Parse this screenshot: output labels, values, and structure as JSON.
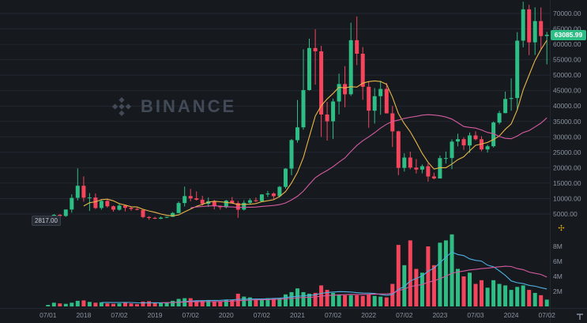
{
  "watermark": {
    "text": "BINANCE",
    "color": "#4a5362"
  },
  "colors": {
    "bg": "#161a1e",
    "up": "#2ebd85",
    "down": "#f4455d",
    "grid": "#222731",
    "axis_text": "#8b93a0",
    "badge_bg": "#2ebd85",
    "badge_text": "#ffffff",
    "accent_yellow": "#f0b90b"
  },
  "last_price": {
    "label": "63085.99",
    "value": 63085.99
  },
  "first_label": {
    "label": "2817.00",
    "value": 2817.0
  },
  "price_axis": {
    "max": 70000,
    "min": 5000,
    "labels": [
      "70000.00",
      "65000.00",
      "60000.00",
      "55000.00",
      "50000.00",
      "45000.00",
      "40000.00",
      "35000.00",
      "30000.00",
      "25000.00",
      "20000.00",
      "15000.00",
      "10000.00",
      "5000.00"
    ]
  },
  "volume_axis": {
    "unit": "M",
    "labels": [
      {
        "label": "8M",
        "value": 8
      },
      {
        "label": "6M",
        "value": 6
      },
      {
        "label": "4M",
        "value": 4
      },
      {
        "label": "2M",
        "value": 2
      }
    ]
  },
  "time_axis": {
    "labels": [
      {
        "index": 0,
        "text": "07/01"
      },
      {
        "index": 6,
        "text": "2018"
      },
      {
        "index": 12,
        "text": "07/02"
      },
      {
        "index": 18,
        "text": "2019"
      },
      {
        "index": 24,
        "text": "07/02"
      },
      {
        "index": 30,
        "text": "2020"
      },
      {
        "index": 36,
        "text": "07/02"
      },
      {
        "index": 42,
        "text": "2021"
      },
      {
        "index": 48,
        "text": "07/02"
      },
      {
        "index": 54,
        "text": "2022"
      },
      {
        "index": 60,
        "text": "07/02"
      },
      {
        "index": 66,
        "text": "2023"
      },
      {
        "index": 72,
        "text": "07/03"
      },
      {
        "index": 78,
        "text": "2024"
      },
      {
        "index": 84,
        "text": "07/02"
      }
    ]
  },
  "chart_data": {
    "type": "candlestick",
    "subtype": "price-with-volume",
    "interval": "monthly",
    "start_month": "2017-07",
    "ylim_price": [
      5000,
      70000
    ],
    "ylim_volume_millions": [
      0,
      10
    ],
    "last_price": 63085.99,
    "price_ma": [
      {
        "period": 7,
        "color": "#e7b54a"
      },
      {
        "period": 25,
        "color": "#d45a9f"
      }
    ],
    "volume_ma": [
      {
        "period": 10,
        "color": "#4cb0e0"
      },
      {
        "period": 20,
        "color": "#d45a9f"
      }
    ],
    "candles_format": [
      "open",
      "high",
      "low",
      "close",
      "volume_millions"
    ],
    "candles": [
      [
        2480,
        2960,
        1830,
        2875,
        0.2
      ],
      [
        2875,
        4980,
        2830,
        4735,
        0.5
      ],
      [
        4735,
        4975,
        2970,
        4360,
        0.4
      ],
      [
        4360,
        6500,
        4110,
        6468,
        0.35
      ],
      [
        6468,
        11400,
        5440,
        10233,
        0.5
      ],
      [
        10233,
        19800,
        9380,
        14156,
        0.75
      ],
      [
        14156,
        17200,
        9000,
        10285,
        0.8
      ],
      [
        10285,
        11790,
        6000,
        10340,
        0.6
      ],
      [
        10340,
        11680,
        6600,
        6940,
        0.5
      ],
      [
        6940,
        9760,
        6420,
        9245,
        0.55
      ],
      [
        9245,
        9990,
        7040,
        7500,
        0.4
      ],
      [
        7500,
        7780,
        5780,
        6400,
        0.35
      ],
      [
        6400,
        8500,
        6070,
        7750,
        0.4
      ],
      [
        7750,
        7760,
        5880,
        7020,
        0.55
      ],
      [
        7020,
        7410,
        6100,
        6630,
        0.4
      ],
      [
        6630,
        6970,
        6200,
        6340,
        0.3
      ],
      [
        6340,
        6540,
        3650,
        4040,
        0.65
      ],
      [
        4040,
        4300,
        3130,
        3740,
        0.7
      ],
      [
        3740,
        4080,
        3350,
        3460,
        0.55
      ],
      [
        3460,
        4190,
        3330,
        3820,
        0.5
      ],
      [
        3820,
        4140,
        3670,
        4100,
        0.45
      ],
      [
        4100,
        5630,
        4050,
        5320,
        0.75
      ],
      [
        5320,
        9070,
        5270,
        8560,
        1.0
      ],
      [
        8560,
        13880,
        7430,
        10820,
        1.1
      ],
      [
        10820,
        13130,
        9090,
        10080,
        1.1
      ],
      [
        10080,
        12320,
        9350,
        9630,
        0.8
      ],
      [
        9630,
        10900,
        7700,
        8310,
        0.75
      ],
      [
        8310,
        10350,
        7300,
        9150,
        0.85
      ],
      [
        9150,
        9520,
        6520,
        7550,
        0.7
      ],
      [
        7550,
        7750,
        6430,
        7200,
        0.65
      ],
      [
        7200,
        9570,
        6850,
        9350,
        0.9
      ],
      [
        9350,
        10500,
        8400,
        8540,
        0.9
      ],
      [
        8540,
        9190,
        3780,
        6420,
        1.7
      ],
      [
        6420,
        9460,
        6150,
        8630,
        1.3
      ],
      [
        8630,
        10070,
        8100,
        9450,
        1.2
      ],
      [
        9450,
        10380,
        8830,
        9140,
        0.9
      ],
      [
        9140,
        11440,
        8900,
        11350,
        0.9
      ],
      [
        11350,
        12480,
        10550,
        11650,
        1.1
      ],
      [
        11650,
        12050,
        9820,
        10780,
        1.1
      ],
      [
        10780,
        14100,
        10380,
        13800,
        1.1
      ],
      [
        13800,
        19860,
        13200,
        19700,
        1.6
      ],
      [
        19700,
        29300,
        17570,
        28950,
        1.9
      ],
      [
        28950,
        41950,
        28130,
        33110,
        2.4
      ],
      [
        33110,
        58350,
        32300,
        45160,
        1.9
      ],
      [
        45160,
        61800,
        45000,
        58780,
        1.7
      ],
      [
        58780,
        64850,
        46930,
        57720,
        1.8
      ],
      [
        57720,
        59500,
        30000,
        37250,
        2.8
      ],
      [
        37250,
        41330,
        28800,
        35040,
        2.2
      ],
      [
        35040,
        42400,
        29280,
        41460,
        1.8
      ],
      [
        41460,
        50500,
        37300,
        47110,
        1.6
      ],
      [
        47110,
        52920,
        39600,
        43790,
        1.5
      ],
      [
        43790,
        67000,
        43280,
        61320,
        1.5
      ],
      [
        61320,
        69000,
        53260,
        56950,
        1.5
      ],
      [
        56950,
        59100,
        42000,
        46220,
        1.4
      ],
      [
        46220,
        47990,
        32950,
        38480,
        1.6
      ],
      [
        38480,
        45820,
        34320,
        43190,
        1.4
      ],
      [
        43190,
        48190,
        37160,
        45540,
        1.3
      ],
      [
        45540,
        47450,
        37580,
        37640,
        1.2
      ],
      [
        37640,
        40020,
        26700,
        31790,
        3.0
      ],
      [
        31790,
        31990,
        17600,
        19940,
        8.2
      ],
      [
        19940,
        24670,
        18780,
        23300,
        5.5
      ],
      [
        23300,
        25210,
        19520,
        20050,
        8.8
      ],
      [
        20050,
        22800,
        18130,
        19420,
        5.0
      ],
      [
        19420,
        21080,
        18190,
        20490,
        4.5
      ],
      [
        20490,
        21480,
        15480,
        17170,
        8.0
      ],
      [
        17170,
        18390,
        16260,
        16540,
        5.5
      ],
      [
        16540,
        23960,
        16490,
        23130,
        8.5
      ],
      [
        23130,
        25250,
        21350,
        23140,
        8.8
      ],
      [
        23140,
        29180,
        19550,
        28470,
        9.6
      ],
      [
        28470,
        31050,
        26940,
        29250,
        5.0
      ],
      [
        29250,
        29820,
        25800,
        27220,
        4.0
      ],
      [
        27220,
        31400,
        24800,
        30470,
        4.5
      ],
      [
        30470,
        31800,
        28860,
        29230,
        3.0
      ],
      [
        29230,
        30240,
        25350,
        25930,
        3.5
      ],
      [
        25930,
        27480,
        24900,
        26960,
        2.5
      ],
      [
        26960,
        35000,
        26540,
        34650,
        3.5
      ],
      [
        34650,
        38420,
        34080,
        37710,
        3.0
      ],
      [
        37710,
        44700,
        37620,
        42280,
        2.8
      ],
      [
        42280,
        48970,
        38500,
        42580,
        2.2
      ],
      [
        42580,
        63930,
        38680,
        61170,
        2.6
      ],
      [
        61170,
        73780,
        59010,
        71330,
        2.8
      ],
      [
        71330,
        72800,
        56500,
        60640,
        2.2
      ],
      [
        60640,
        71980,
        56550,
        67530,
        1.8
      ],
      [
        67530,
        71940,
        58400,
        62670,
        1.5
      ],
      [
        62670,
        64000,
        53500,
        63086,
        0.9
      ]
    ]
  }
}
